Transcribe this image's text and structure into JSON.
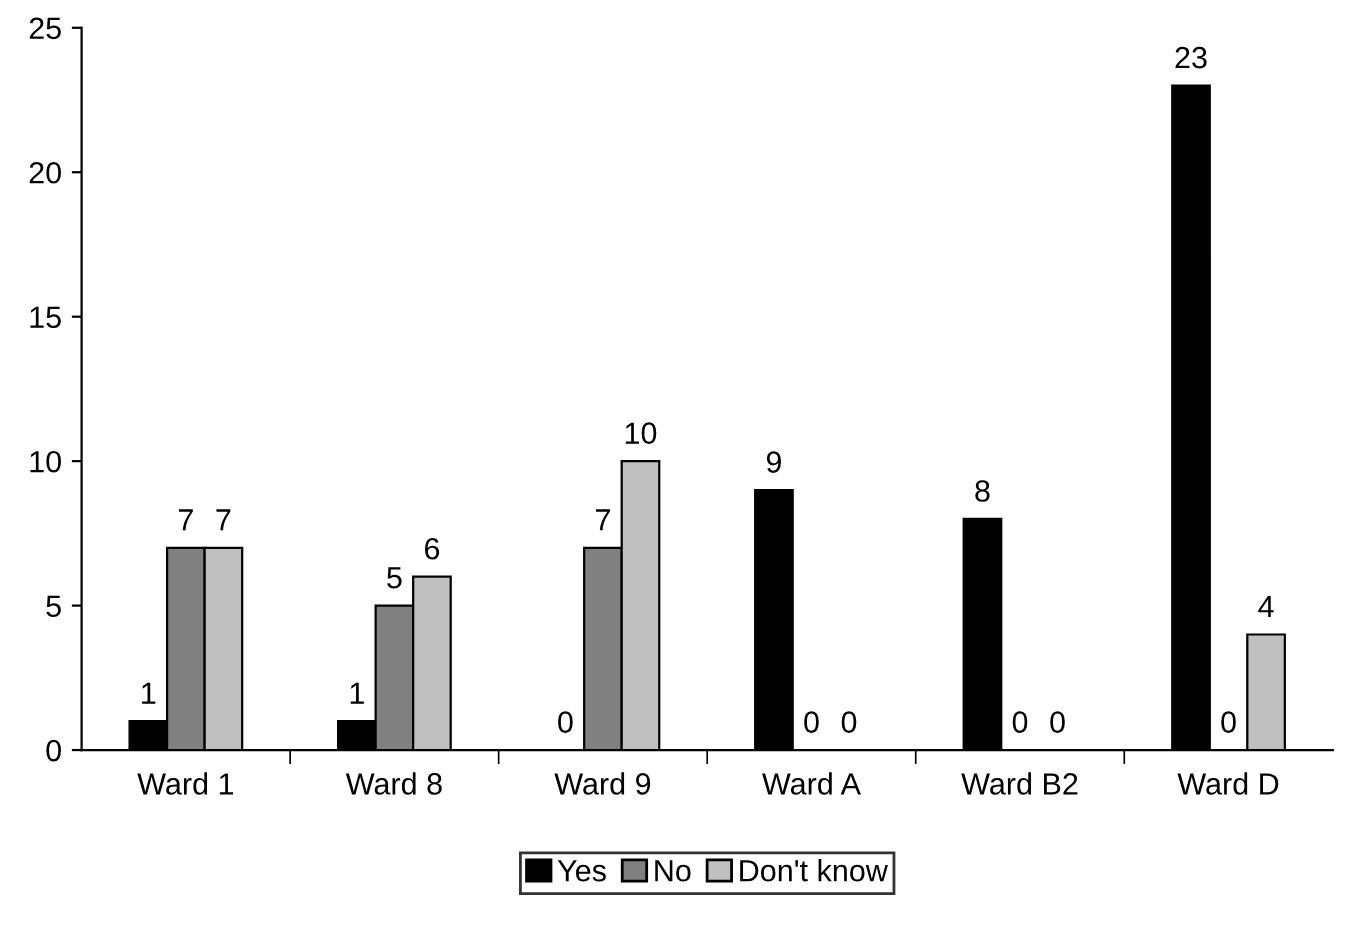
{
  "chart_data": {
    "type": "bar",
    "categories": [
      "Ward 1",
      "Ward 8",
      "Ward 9",
      "Ward A",
      "Ward B2",
      "Ward D"
    ],
    "series": [
      {
        "name": "Yes",
        "color": "#000000",
        "values": [
          1,
          1,
          0,
          9,
          8,
          23
        ]
      },
      {
        "name": "No",
        "color": "#808080",
        "values": [
          7,
          5,
          7,
          0,
          0,
          0
        ]
      },
      {
        "name": "Don't know",
        "color": "#c0c0c0",
        "values": [
          7,
          6,
          10,
          0,
          0,
          4
        ]
      }
    ],
    "ylim": [
      0,
      25
    ],
    "yticks": [
      0,
      5,
      10,
      15,
      20,
      25
    ],
    "data_labels": true,
    "legend": "bottom",
    "grid": false
  }
}
